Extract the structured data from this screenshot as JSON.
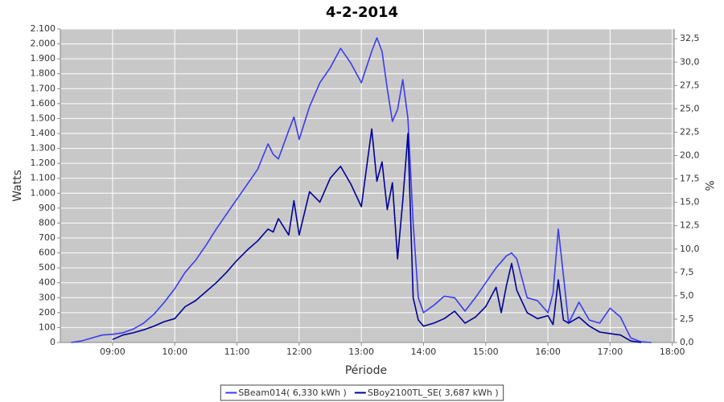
{
  "chart_data": {
    "type": "line",
    "title": "4-2-2014",
    "x_label": "Période",
    "y_label": "Watts",
    "y2_label": "%",
    "grid": true,
    "legend": "bottom",
    "xlim": [
      8.16,
      18.03
    ],
    "xticks": [
      {
        "value": 9,
        "label": "09:00"
      },
      {
        "value": 10,
        "label": "10:00"
      },
      {
        "value": 11,
        "label": "11:00"
      },
      {
        "value": 12,
        "label": "12:00"
      },
      {
        "value": 13,
        "label": "13:00"
      },
      {
        "value": 14,
        "label": "14:00"
      },
      {
        "value": 15,
        "label": "15:00"
      },
      {
        "value": 16,
        "label": "16:00"
      },
      {
        "value": 17,
        "label": "17:00"
      },
      {
        "value": 18,
        "label": "18:00"
      }
    ],
    "ylim": [
      0,
      2100
    ],
    "yticks": [
      0,
      100,
      200,
      300,
      400,
      500,
      600,
      700,
      800,
      900,
      {
        "value": 1000,
        "label": "1.000"
      },
      {
        "value": 1100,
        "label": "1.100"
      },
      {
        "value": 1200,
        "label": "1.200"
      },
      {
        "value": 1300,
        "label": "1.300"
      },
      {
        "value": 1400,
        "label": "1.400"
      },
      {
        "value": 1500,
        "label": "1.500"
      },
      {
        "value": 1600,
        "label": "1.600"
      },
      {
        "value": 1700,
        "label": "1.700"
      },
      {
        "value": 1800,
        "label": "1.800"
      },
      {
        "value": 1900,
        "label": "1.900"
      },
      {
        "value": 2000,
        "label": "2.000"
      },
      {
        "value": 2100,
        "label": "2.100"
      }
    ],
    "y2lim": [
      0,
      33.55
    ],
    "y2ticks": [
      {
        "value": 0,
        "label": "0,0"
      },
      {
        "value": 2.5,
        "label": "2,5"
      },
      {
        "value": 5,
        "label": "5,0"
      },
      {
        "value": 7.5,
        "label": "7,5"
      },
      {
        "value": 10,
        "label": "10,0"
      },
      {
        "value": 12.5,
        "label": "12,5"
      },
      {
        "value": 15,
        "label": "15,0"
      },
      {
        "value": 17.5,
        "label": "17,5"
      },
      {
        "value": 20,
        "label": "20,0"
      },
      {
        "value": 22.5,
        "label": "22,5"
      },
      {
        "value": 25,
        "label": "25,0"
      },
      {
        "value": 27.5,
        "label": "27,5"
      },
      {
        "value": 30,
        "label": "30,0"
      },
      {
        "value": 32.5,
        "label": "32,5"
      }
    ],
    "x": [
      8.333,
      8.5,
      8.667,
      8.833,
      9.0,
      9.167,
      9.333,
      9.5,
      9.667,
      9.833,
      10.0,
      10.167,
      10.333,
      10.5,
      10.667,
      10.833,
      11.0,
      11.167,
      11.333,
      11.5,
      11.583,
      11.667,
      11.833,
      11.917,
      12.0,
      12.167,
      12.333,
      12.5,
      12.667,
      12.833,
      13.0,
      13.167,
      13.25,
      13.333,
      13.417,
      13.5,
      13.583,
      13.667,
      13.75,
      13.833,
      13.917,
      14.0,
      14.167,
      14.333,
      14.5,
      14.667,
      14.833,
      15.0,
      15.167,
      15.25,
      15.333,
      15.417,
      15.5,
      15.667,
      15.833,
      16.0,
      16.083,
      16.167,
      16.25,
      16.333,
      16.5,
      16.667,
      16.833,
      17.0,
      17.167,
      17.333,
      17.5,
      17.667
    ],
    "series": [
      {
        "name": "SBeam014( 6,330 kWh )",
        "color": "#3b3bf0",
        "values": [
          0,
          10,
          30,
          50,
          55,
          65,
          90,
          130,
          190,
          270,
          360,
          470,
          550,
          650,
          760,
          860,
          960,
          1060,
          1160,
          1330,
          1260,
          1230,
          1420,
          1510,
          1360,
          1580,
          1740,
          1840,
          1970,
          1870,
          1740,
          1950,
          2040,
          1950,
          1700,
          1480,
          1560,
          1760,
          1500,
          800,
          300,
          200,
          250,
          310,
          300,
          210,
          300,
          400,
          500,
          540,
          580,
          600,
          560,
          300,
          280,
          200,
          330,
          760,
          450,
          130,
          270,
          150,
          130,
          230,
          170,
          30,
          5,
          0
        ]
      },
      {
        "name": "SBoy2100TL_SE( 3,687 kWh )",
        "color": "#000099",
        "values": [
          null,
          null,
          null,
          null,
          20,
          50,
          65,
          85,
          110,
          140,
          160,
          240,
          280,
          340,
          400,
          470,
          550,
          620,
          680,
          760,
          740,
          830,
          720,
          950,
          720,
          1010,
          940,
          1100,
          1180,
          1060,
          910,
          1430,
          1080,
          1210,
          890,
          1070,
          560,
          950,
          1400,
          300,
          150,
          110,
          130,
          160,
          210,
          130,
          170,
          240,
          370,
          200,
          380,
          530,
          350,
          200,
          160,
          180,
          120,
          420,
          150,
          130,
          170,
          110,
          70,
          60,
          50,
          10,
          0,
          null
        ]
      }
    ]
  }
}
